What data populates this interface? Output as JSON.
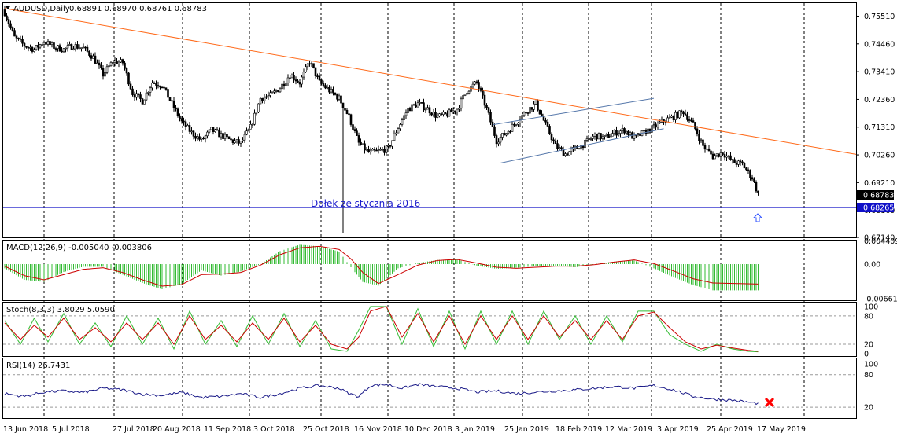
{
  "window": {
    "title": "AUDUSD,Daily",
    "ohlc": "0.68891 0.68970 0.68761 0.68783"
  },
  "annotation": "Dołek ze stycznia 2016",
  "price_tags": {
    "current": "0.68783",
    "support": "0.68265"
  },
  "colors": {
    "bull": "#ffffff",
    "bear": "#000000",
    "trendline": "#ff6a1a",
    "resistance": "#d01010",
    "support": "#1010c8",
    "channel": "#5577aa",
    "macd_hist": "#33bb33",
    "macd_signal": "#cc0000",
    "stoch_main": "#33bb33",
    "stoch_signal": "#cc0000",
    "rsi": "#1a1a88",
    "marker": "#ff0000",
    "arrow": "#3355ff"
  },
  "icons": {
    "arrow": "up-arrow-icon",
    "marker": "red-x-icon",
    "menu": "dropdown-triangle-icon"
  },
  "chart_data": [
    {
      "type": "candlestick",
      "symbol": "AUDUSD",
      "timeframe": "Daily",
      "ylim": [
        0.6714,
        0.76
      ],
      "y_ticks": [
        "0.75510",
        "0.74460",
        "0.73410",
        "0.72360",
        "0.71310",
        "0.70260",
        "0.69210",
        "0.68160",
        "0.67140"
      ],
      "x_ticks": [
        "13 Jun 2018",
        "5 Jul 2018",
        "27 Jul 2018",
        "20 Aug 2018",
        "11 Sep 2018",
        "3 Oct 2018",
        "25 Oct 2018",
        "16 Nov 2018",
        "10 Dec 2018",
        "3 Jan 2019",
        "25 Jan 2019",
        "18 Feb 2019",
        "12 Mar 2019",
        "3 Apr 2019",
        "25 Apr 2019",
        "17 May 2019"
      ],
      "close_path": [
        [
          0,
          0.7565
        ],
        [
          5,
          0.747
        ],
        [
          10,
          0.744
        ],
        [
          15,
          0.7425
        ],
        [
          20,
          0.7455
        ],
        [
          25,
          0.7435
        ],
        [
          30,
          0.7425
        ],
        [
          35,
          0.744
        ],
        [
          40,
          0.743
        ],
        [
          45,
          0.7395
        ],
        [
          50,
          0.733
        ],
        [
          55,
          0.738
        ],
        [
          60,
          0.7375
        ],
        [
          65,
          0.726
        ],
        [
          70,
          0.723
        ],
        [
          75,
          0.73
        ],
        [
          80,
          0.729
        ],
        [
          85,
          0.722
        ],
        [
          90,
          0.715
        ],
        [
          95,
          0.711
        ],
        [
          100,
          0.708
        ],
        [
          105,
          0.712
        ],
        [
          110,
          0.71
        ],
        [
          115,
          0.708
        ],
        [
          120,
          0.707
        ],
        [
          125,
          0.713
        ],
        [
          130,
          0.724
        ],
        [
          135,
          0.725
        ],
        [
          140,
          0.728
        ],
        [
          145,
          0.733
        ],
        [
          150,
          0.73
        ],
        [
          155,
          0.738
        ],
        [
          160,
          0.73
        ],
        [
          165,
          0.727
        ],
        [
          170,
          0.724
        ],
        [
          175,
          0.717
        ],
        [
          180,
          0.707
        ],
        [
          185,
          0.7035
        ],
        [
          190,
          0.704
        ],
        [
          195,
          0.705
        ],
        [
          200,
          0.713
        ],
        [
          205,
          0.72
        ],
        [
          210,
          0.722
        ],
        [
          215,
          0.72
        ],
        [
          220,
          0.717
        ],
        [
          225,
          0.718
        ],
        [
          230,
          0.72
        ],
        [
          235,
          0.727
        ],
        [
          240,
          0.73
        ],
        [
          245,
          0.72
        ],
        [
          250,
          0.708
        ],
        [
          255,
          0.711
        ],
        [
          260,
          0.715
        ],
        [
          265,
          0.719
        ],
        [
          270,
          0.722
        ],
        [
          275,
          0.714
        ],
        [
          280,
          0.706
        ],
        [
          285,
          0.703
        ],
        [
          290,
          0.705
        ],
        [
          295,
          0.707
        ],
        [
          300,
          0.71
        ],
        [
          305,
          0.709
        ],
        [
          310,
          0.711
        ],
        [
          315,
          0.712
        ],
        [
          320,
          0.709
        ],
        [
          325,
          0.711
        ],
        [
          330,
          0.713
        ],
        [
          335,
          0.7155
        ],
        [
          340,
          0.717
        ],
        [
          345,
          0.719
        ],
        [
          350,
          0.714
        ],
        [
          355,
          0.706
        ],
        [
          360,
          0.702
        ],
        [
          365,
          0.7035
        ],
        [
          370,
          0.7
        ],
        [
          375,
          0.699
        ],
        [
          380,
          0.694
        ],
        [
          383,
          0.6878
        ]
      ],
      "spike": {
        "x": 172,
        "low": 0.6729
      },
      "trendline": [
        [
          0,
          0.758
        ],
        [
          400,
          0.707
        ]
      ],
      "resistance": {
        "y": 0.7215,
        "x": [
          200,
          380
        ]
      },
      "support_box": {
        "y": 0.6995,
        "x": [
          220,
          400
        ]
      },
      "channel": {
        "upper": [
          [
            248,
            0.714
          ],
          [
            330,
            0.724
          ]
        ],
        "lower": [
          [
            252,
            0.6995
          ],
          [
            335,
            0.7125
          ]
        ]
      },
      "support_line": 0.68265,
      "last_close": 0.68783
    },
    {
      "type": "histogram",
      "name": "MACD(12,26,9) -0.005040 -0.003806",
      "ylim": [
        -0.0069,
        0.0045
      ],
      "y_ticks": [
        "0.004409",
        "0.00",
        "-0.006614"
      ],
      "hist_path": [
        [
          0,
          -0.0008
        ],
        [
          10,
          -0.003
        ],
        [
          20,
          -0.0034
        ],
        [
          30,
          -0.0015
        ],
        [
          40,
          -0.0005
        ],
        [
          50,
          -0.0005
        ],
        [
          60,
          -0.002
        ],
        [
          70,
          -0.0036
        ],
        [
          80,
          -0.0048
        ],
        [
          90,
          -0.0038
        ],
        [
          100,
          -0.0012
        ],
        [
          110,
          -0.0022
        ],
        [
          120,
          -0.0014
        ],
        [
          130,
          0.0
        ],
        [
          140,
          0.0025
        ],
        [
          150,
          0.0037
        ],
        [
          160,
          0.0034
        ],
        [
          170,
          0.0024
        ],
        [
          176,
          -0.0006
        ],
        [
          182,
          -0.0034
        ],
        [
          190,
          -0.0041
        ],
        [
          200,
          -0.0008
        ],
        [
          210,
          0.0002
        ],
        [
          220,
          0.0008
        ],
        [
          230,
          0.0009
        ],
        [
          240,
          -0.0003
        ],
        [
          250,
          -0.0009
        ],
        [
          260,
          -0.0007
        ],
        [
          270,
          -0.0004
        ],
        [
          280,
          -0.0003
        ],
        [
          290,
          -0.0006
        ],
        [
          300,
          0.0
        ],
        [
          310,
          0.0005
        ],
        [
          320,
          0.0007
        ],
        [
          330,
          -0.0008
        ],
        [
          340,
          -0.0025
        ],
        [
          350,
          -0.004
        ],
        [
          360,
          -0.005
        ],
        [
          383,
          -0.005
        ]
      ],
      "signal_path": [
        [
          0,
          -0.0004
        ],
        [
          10,
          -0.0022
        ],
        [
          20,
          -0.003
        ],
        [
          30,
          -0.002
        ],
        [
          40,
          -0.001
        ],
        [
          50,
          -0.0007
        ],
        [
          60,
          -0.0016
        ],
        [
          70,
          -0.003
        ],
        [
          80,
          -0.0042
        ],
        [
          90,
          -0.0039
        ],
        [
          100,
          -0.002
        ],
        [
          110,
          -0.0019
        ],
        [
          120,
          -0.0016
        ],
        [
          130,
          -0.0002
        ],
        [
          140,
          0.0018
        ],
        [
          150,
          0.0031
        ],
        [
          160,
          0.0034
        ],
        [
          170,
          0.0028
        ],
        [
          176,
          0.001
        ],
        [
          182,
          -0.0016
        ],
        [
          190,
          -0.0037
        ],
        [
          200,
          -0.002
        ],
        [
          210,
          -0.0002
        ],
        [
          220,
          0.0007
        ],
        [
          230,
          0.0009
        ],
        [
          240,
          0.0002
        ],
        [
          250,
          -0.0006
        ],
        [
          260,
          -0.0008
        ],
        [
          270,
          -0.0006
        ],
        [
          280,
          -0.0004
        ],
        [
          290,
          -0.0004
        ],
        [
          300,
          -0.0001
        ],
        [
          310,
          0.0004
        ],
        [
          320,
          0.0008
        ],
        [
          330,
          0.0001
        ],
        [
          340,
          -0.0013
        ],
        [
          350,
          -0.0028
        ],
        [
          360,
          -0.0036
        ],
        [
          383,
          -0.0038
        ]
      ]
    },
    {
      "type": "line",
      "name": "Stoch(8,3,3) 3.8029 5.0590",
      "ylim": [
        -5,
        108
      ],
      "y_ticks": [
        "100",
        "80",
        "20",
        "0"
      ],
      "main_path": [
        [
          0,
          70
        ],
        [
          8,
          20
        ],
        [
          15,
          75
        ],
        [
          22,
          25
        ],
        [
          30,
          85
        ],
        [
          38,
          20
        ],
        [
          46,
          65
        ],
        [
          54,
          15
        ],
        [
          62,
          80
        ],
        [
          70,
          20
        ],
        [
          78,
          75
        ],
        [
          86,
          10
        ],
        [
          94,
          90
        ],
        [
          102,
          20
        ],
        [
          110,
          70
        ],
        [
          118,
          15
        ],
        [
          126,
          80
        ],
        [
          134,
          20
        ],
        [
          142,
          85
        ],
        [
          150,
          15
        ],
        [
          158,
          70
        ],
        [
          166,
          10
        ],
        [
          174,
          5
        ],
        [
          180,
          50
        ],
        [
          186,
          100
        ],
        [
          194,
          100
        ],
        [
          202,
          20
        ],
        [
          210,
          95
        ],
        [
          218,
          15
        ],
        [
          226,
          90
        ],
        [
          234,
          10
        ],
        [
          242,
          90
        ],
        [
          250,
          20
        ],
        [
          258,
          90
        ],
        [
          266,
          20
        ],
        [
          274,
          90
        ],
        [
          282,
          30
        ],
        [
          290,
          80
        ],
        [
          298,
          20
        ],
        [
          306,
          80
        ],
        [
          314,
          25
        ],
        [
          322,
          90
        ],
        [
          330,
          90
        ],
        [
          338,
          40
        ],
        [
          346,
          20
        ],
        [
          354,
          5
        ],
        [
          362,
          20
        ],
        [
          370,
          10
        ],
        [
          378,
          5
        ],
        [
          383,
          4
        ]
      ],
      "signal_path": [
        [
          0,
          65
        ],
        [
          8,
          30
        ],
        [
          15,
          60
        ],
        [
          22,
          35
        ],
        [
          30,
          75
        ],
        [
          38,
          30
        ],
        [
          46,
          55
        ],
        [
          54,
          25
        ],
        [
          62,
          65
        ],
        [
          70,
          30
        ],
        [
          78,
          65
        ],
        [
          86,
          20
        ],
        [
          94,
          80
        ],
        [
          102,
          30
        ],
        [
          110,
          60
        ],
        [
          118,
          25
        ],
        [
          126,
          65
        ],
        [
          134,
          30
        ],
        [
          142,
          75
        ],
        [
          150,
          25
        ],
        [
          158,
          60
        ],
        [
          166,
          20
        ],
        [
          174,
          10
        ],
        [
          180,
          35
        ],
        [
          186,
          90
        ],
        [
          194,
          100
        ],
        [
          202,
          35
        ],
        [
          210,
          85
        ],
        [
          218,
          25
        ],
        [
          226,
          80
        ],
        [
          234,
          20
        ],
        [
          242,
          80
        ],
        [
          250,
          30
        ],
        [
          258,
          80
        ],
        [
          266,
          30
        ],
        [
          274,
          80
        ],
        [
          282,
          35
        ],
        [
          290,
          70
        ],
        [
          298,
          30
        ],
        [
          306,
          70
        ],
        [
          314,
          30
        ],
        [
          322,
          80
        ],
        [
          330,
          88
        ],
        [
          338,
          55
        ],
        [
          346,
          25
        ],
        [
          354,
          10
        ],
        [
          362,
          18
        ],
        [
          370,
          12
        ],
        [
          378,
          7
        ],
        [
          383,
          5
        ]
      ],
      "levels": [
        80,
        20
      ]
    },
    {
      "type": "line",
      "name": "RSI(14) 26.7431",
      "ylim": [
        0,
        110
      ],
      "y_ticks": [
        "100",
        "80",
        "20",
        "0"
      ],
      "rsi_path": [
        [
          0,
          45
        ],
        [
          10,
          40
        ],
        [
          20,
          48
        ],
        [
          30,
          50
        ],
        [
          40,
          47
        ],
        [
          50,
          55
        ],
        [
          60,
          52
        ],
        [
          70,
          44
        ],
        [
          80,
          42
        ],
        [
          90,
          47
        ],
        [
          100,
          38
        ],
        [
          110,
          40
        ],
        [
          120,
          45
        ],
        [
          130,
          38
        ],
        [
          140,
          45
        ],
        [
          150,
          55
        ],
        [
          160,
          60
        ],
        [
          170,
          55
        ],
        [
          175,
          45
        ],
        [
          180,
          40
        ],
        [
          186,
          60
        ],
        [
          194,
          62
        ],
        [
          202,
          55
        ],
        [
          210,
          62
        ],
        [
          220,
          58
        ],
        [
          230,
          55
        ],
        [
          240,
          48
        ],
        [
          250,
          50
        ],
        [
          260,
          45
        ],
        [
          270,
          48
        ],
        [
          280,
          50
        ],
        [
          290,
          52
        ],
        [
          300,
          55
        ],
        [
          310,
          58
        ],
        [
          320,
          55
        ],
        [
          330,
          60
        ],
        [
          340,
          52
        ],
        [
          350,
          40
        ],
        [
          360,
          35
        ],
        [
          370,
          33
        ],
        [
          383,
          27
        ]
      ],
      "levels": [
        80,
        20
      ]
    }
  ]
}
